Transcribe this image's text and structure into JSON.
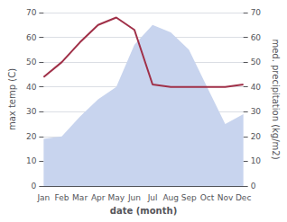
{
  "chart_data": {
    "type": "line",
    "categories": [
      "Jan",
      "Feb",
      "Mar",
      "Apr",
      "May",
      "Jun",
      "Jul",
      "Aug",
      "Sep",
      "Oct",
      "Nov",
      "Dec"
    ],
    "series": [
      {
        "type": "area",
        "axis": "y2",
        "color": "#c8d4ee",
        "values": [
          19,
          20,
          28,
          35,
          40,
          57,
          65,
          62,
          55,
          40,
          25,
          29
        ]
      },
      {
        "type": "line",
        "color": "#a03048",
        "values": [
          44,
          50,
          58,
          65,
          68,
          63,
          41,
          40,
          40,
          40,
          40,
          41
        ]
      }
    ],
    "xlabel": "date (month)",
    "ylabel": "max temp (C)",
    "y2label": "med. precipitation (kg/m2)",
    "ylim": [
      0,
      70
    ],
    "yticks": [
      0,
      10,
      20,
      30,
      40,
      50,
      60,
      70
    ],
    "y2lim": [
      0,
      70
    ],
    "y2ticks": [
      0,
      10,
      20,
      30,
      40,
      50,
      60,
      70
    ],
    "grid": true
  }
}
